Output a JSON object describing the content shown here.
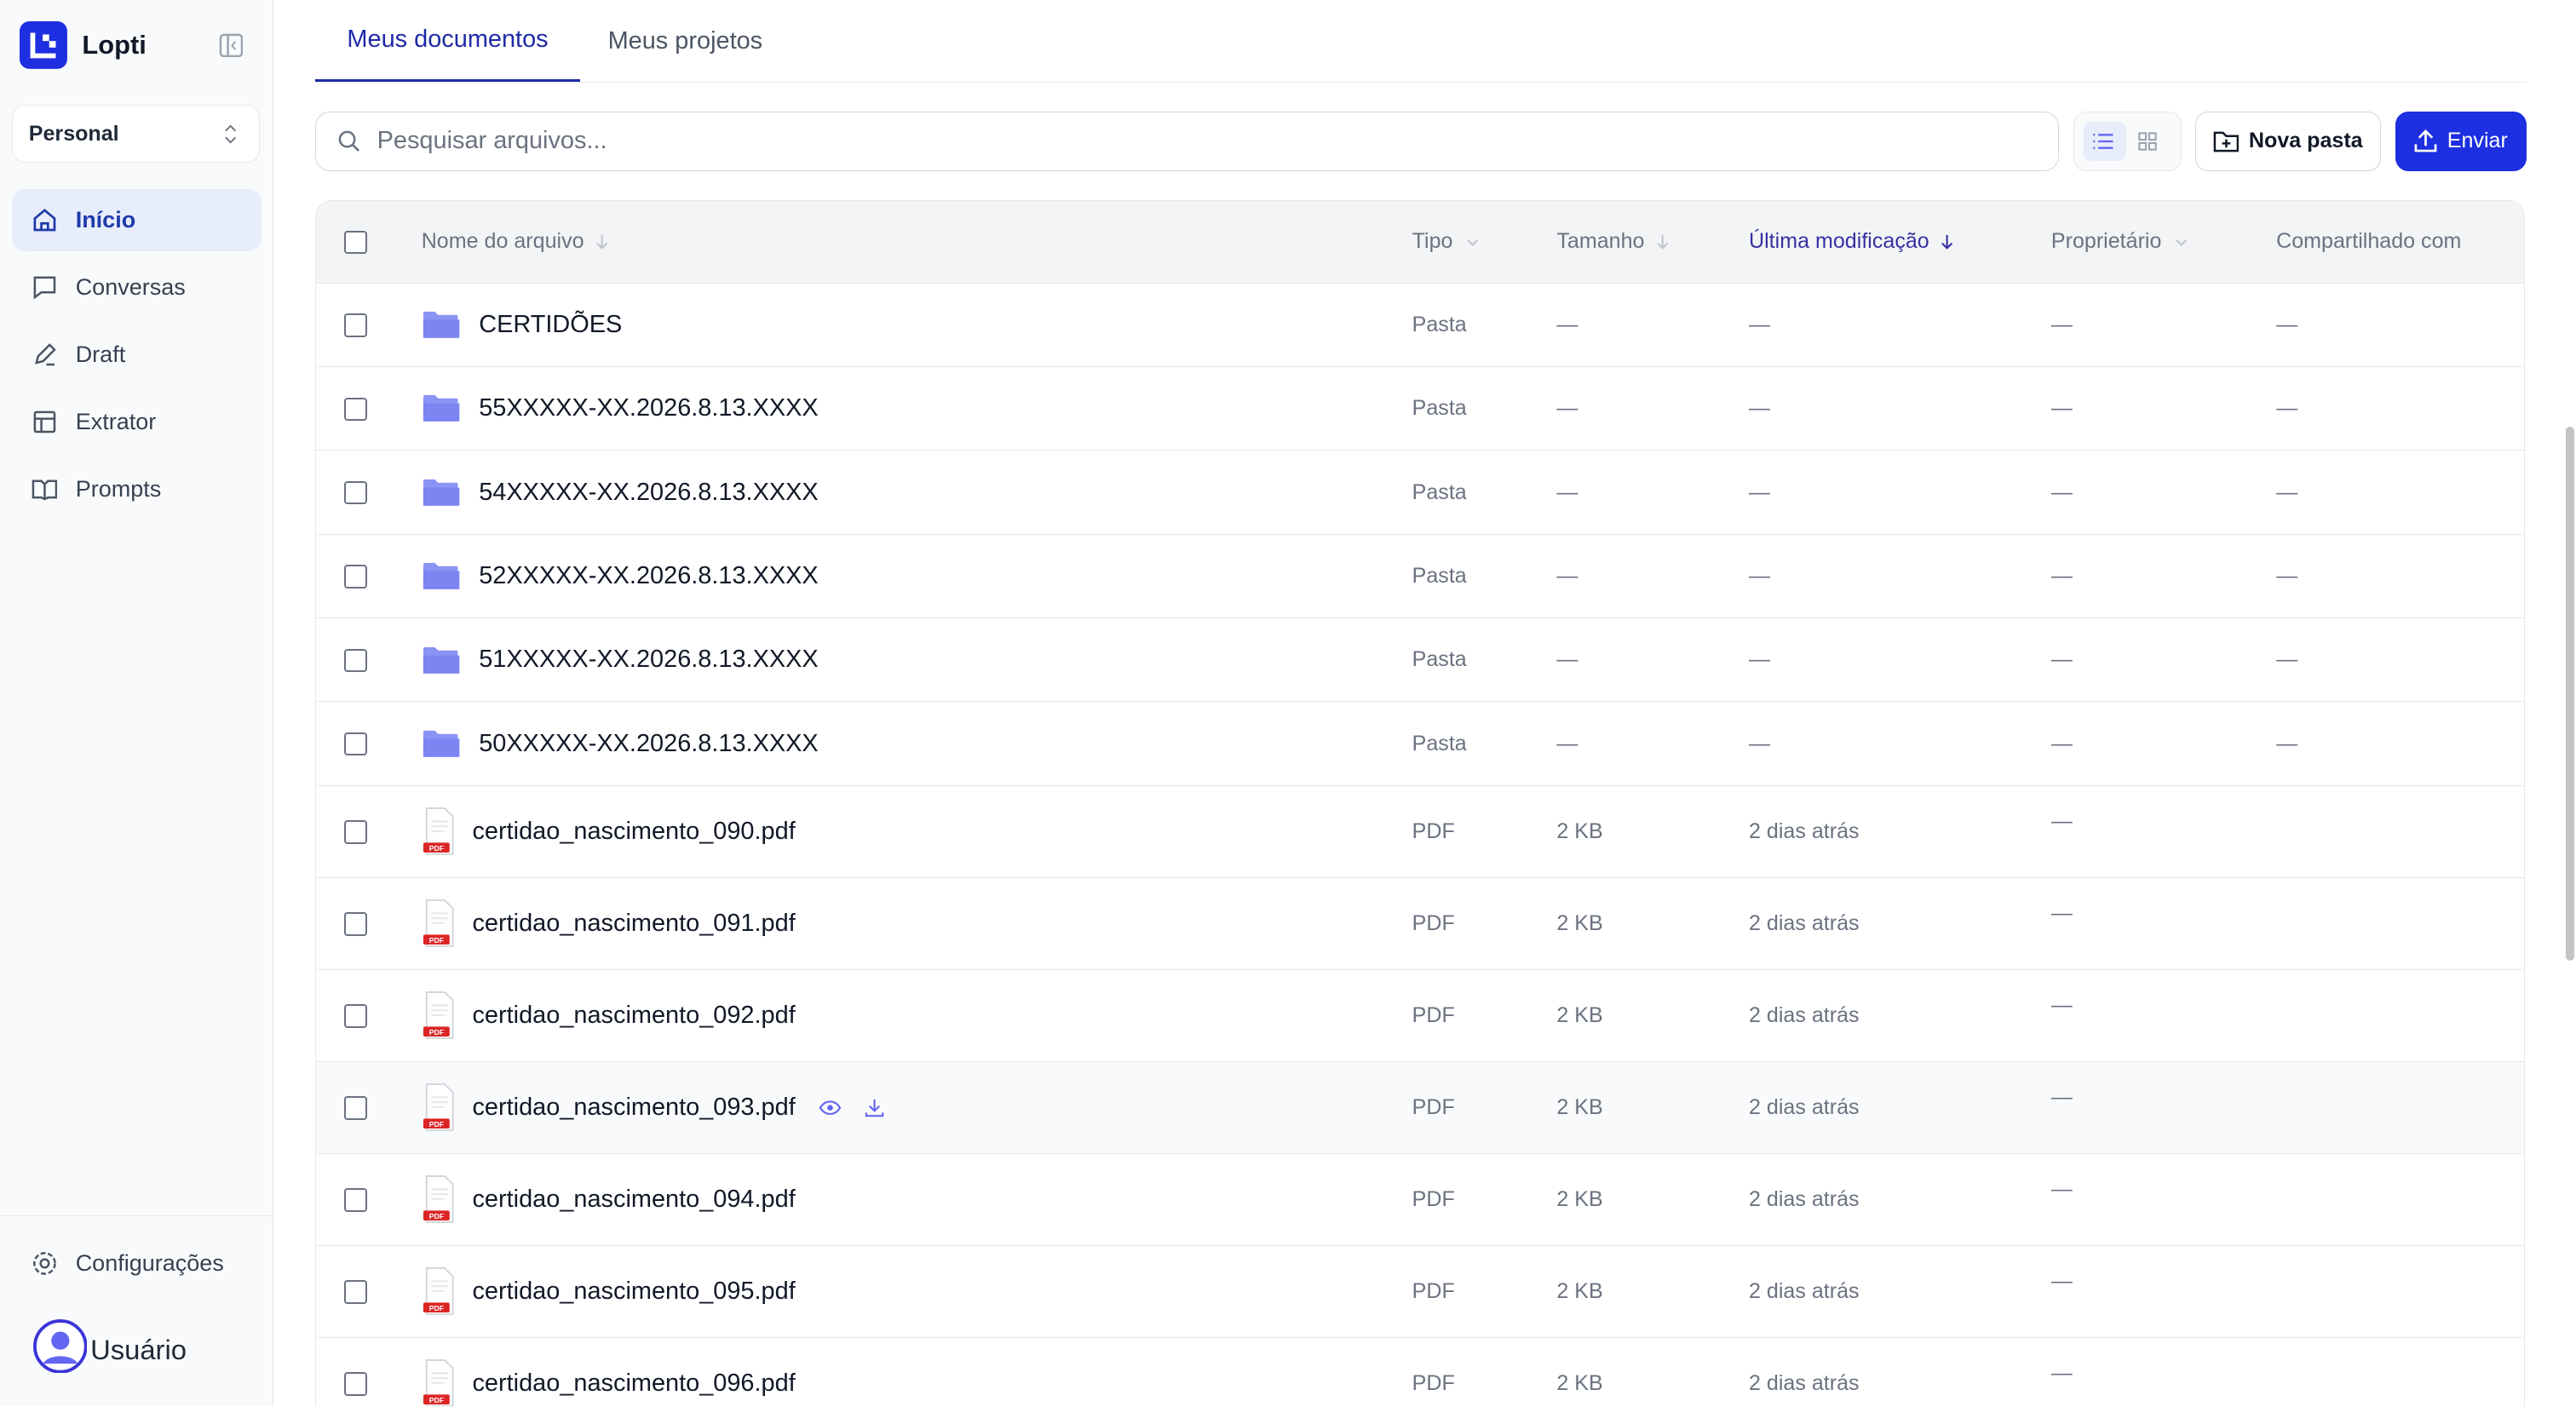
{
  "sidebar": {
    "brand": "Lopti",
    "workspace": "Personal",
    "nav": [
      "Início",
      "Conversas",
      "Draft",
      "Extrator",
      "Prompts"
    ],
    "settings": "Configurações",
    "user": "Usuário"
  },
  "tabs": [
    "Meus documentos",
    "Meus projetos"
  ],
  "toolbar": {
    "search_placeholder": "Pesquisar arquivos...",
    "new_folder": "Nova pasta",
    "upload": "Enviar"
  },
  "table": {
    "headers": [
      "Nome do arquivo",
      "Tipo",
      "Tamanho",
      "Última modificação",
      "Proprietário",
      "Compartilhado com"
    ],
    "rows": [
      {
        "kind": "folder",
        "name": "CERTIDÕES",
        "type": "Pasta",
        "size": "—",
        "modified": "—",
        "owner": "—",
        "shared": "—"
      },
      {
        "kind": "folder",
        "name": "55XXXXX-XX.2026.8.13.XXXX",
        "type": "Pasta",
        "size": "—",
        "modified": "—",
        "owner": "—",
        "shared": "—"
      },
      {
        "kind": "folder",
        "name": "54XXXXX-XX.2026.8.13.XXXX",
        "type": "Pasta",
        "size": "—",
        "modified": "—",
        "owner": "—",
        "shared": "—"
      },
      {
        "kind": "folder",
        "name": "52XXXXX-XX.2026.8.13.XXXX",
        "type": "Pasta",
        "size": "—",
        "modified": "—",
        "owner": "—",
        "shared": "—"
      },
      {
        "kind": "folder",
        "name": "51XXXXX-XX.2026.8.13.XXXX",
        "type": "Pasta",
        "size": "—",
        "modified": "—",
        "owner": "—",
        "shared": "—"
      },
      {
        "kind": "folder",
        "name": "50XXXXX-XX.2026.8.13.XXXX",
        "type": "Pasta",
        "size": "—",
        "modified": "—",
        "owner": "—",
        "shared": "—"
      },
      {
        "kind": "file",
        "name": "certidao_nascimento_090.pdf",
        "type": "PDF",
        "size": "2 KB",
        "modified": "2 dias atrás",
        "owner": "—"
      },
      {
        "kind": "file",
        "name": "certidao_nascimento_091.pdf",
        "type": "PDF",
        "size": "2 KB",
        "modified": "2 dias atrás",
        "owner": "—"
      },
      {
        "kind": "file",
        "name": "certidao_nascimento_092.pdf",
        "type": "PDF",
        "size": "2 KB",
        "modified": "2 dias atrás",
        "owner": "—"
      },
      {
        "kind": "file",
        "name": "certidao_nascimento_093.pdf",
        "type": "PDF",
        "size": "2 KB",
        "modified": "2 dias atrás",
        "owner": "—",
        "hover": true
      },
      {
        "kind": "file",
        "name": "certidao_nascimento_094.pdf",
        "type": "PDF",
        "size": "2 KB",
        "modified": "2 dias atrás",
        "owner": "—"
      },
      {
        "kind": "file",
        "name": "certidao_nascimento_095.pdf",
        "type": "PDF",
        "size": "2 KB",
        "modified": "2 dias atrás",
        "owner": "—"
      },
      {
        "kind": "file",
        "name": "certidao_nascimento_096.pdf",
        "type": "PDF",
        "size": "2 KB",
        "modified": "2 dias atrás",
        "owner": "—"
      }
    ]
  }
}
